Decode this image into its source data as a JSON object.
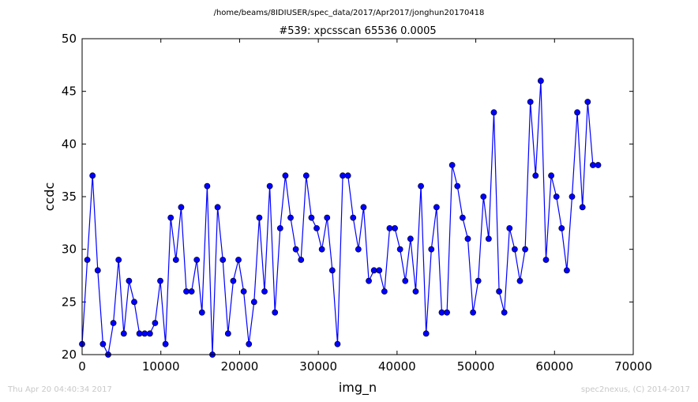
{
  "header": {
    "path": "/home/beams/8IDIUSER/spec_data/2017/Apr2017/jonghun20170418"
  },
  "footer": {
    "timestamp": "Thu Apr 20 04:40:34 2017",
    "credit": "spec2nexus, (C) 2014-2017"
  },
  "chart_data": {
    "type": "line",
    "title": "#539: xpcsscan 65536 0.0005",
    "xlabel": "img_n",
    "ylabel": "ccdc",
    "xlim": [
      0,
      70000
    ],
    "ylim": [
      20,
      50
    ],
    "xticks": [
      0,
      10000,
      20000,
      30000,
      40000,
      50000,
      60000,
      70000
    ],
    "yticks": [
      20,
      25,
      30,
      35,
      40,
      45,
      50
    ],
    "grid": false,
    "series": [
      {
        "color": "#0000ff",
        "marker": "circle",
        "x": [
          0,
          662,
          1324,
          1986,
          2648,
          3310,
          3972,
          4634,
          5296,
          5958,
          6620,
          7282,
          7944,
          8606,
          9268,
          9930,
          10592,
          11254,
          11916,
          12578,
          13240,
          13902,
          14564,
          15226,
          15888,
          16550,
          17212,
          17874,
          18536,
          19198,
          19860,
          20522,
          21184,
          21846,
          22508,
          23170,
          23832,
          24494,
          25156,
          25818,
          26480,
          27142,
          27804,
          28466,
          29128,
          29790,
          30452,
          31114,
          31776,
          32438,
          33100,
          33762,
          34424,
          35086,
          35748,
          36410,
          37072,
          37734,
          38396,
          39058,
          39720,
          40382,
          41044,
          41706,
          42368,
          43030,
          43692,
          44354,
          45016,
          45678,
          46340,
          47002,
          47664,
          48326,
          48988,
          49650,
          50312,
          50974,
          51636,
          52298,
          52960,
          53622,
          54284,
          54946,
          55608,
          56270,
          56932,
          57594,
          58256,
          58918,
          59580,
          60242,
          60904,
          61566,
          62228,
          62890,
          63552,
          64214,
          64876,
          65538
        ],
        "y": [
          21,
          29,
          37,
          28,
          21,
          20,
          23,
          29,
          22,
          27,
          25,
          22,
          22,
          22,
          23,
          27,
          21,
          33,
          29,
          34,
          26,
          26,
          29,
          24,
          36,
          20,
          34,
          29,
          22,
          27,
          29,
          26,
          21,
          25,
          33,
          26,
          36,
          24,
          32,
          37,
          33,
          30,
          29,
          37,
          33,
          32,
          30,
          33,
          28,
          21,
          37,
          37,
          33,
          30,
          34,
          27,
          28,
          28,
          26,
          32,
          32,
          30,
          27,
          31,
          26,
          36,
          22,
          30,
          34,
          24,
          24,
          38,
          36,
          33,
          31,
          24,
          27,
          35,
          31,
          43,
          26,
          24,
          32,
          30,
          27,
          30,
          44,
          37,
          46,
          29,
          37,
          35,
          32,
          28,
          35,
          43,
          34,
          44,
          38,
          38
        ]
      }
    ]
  }
}
